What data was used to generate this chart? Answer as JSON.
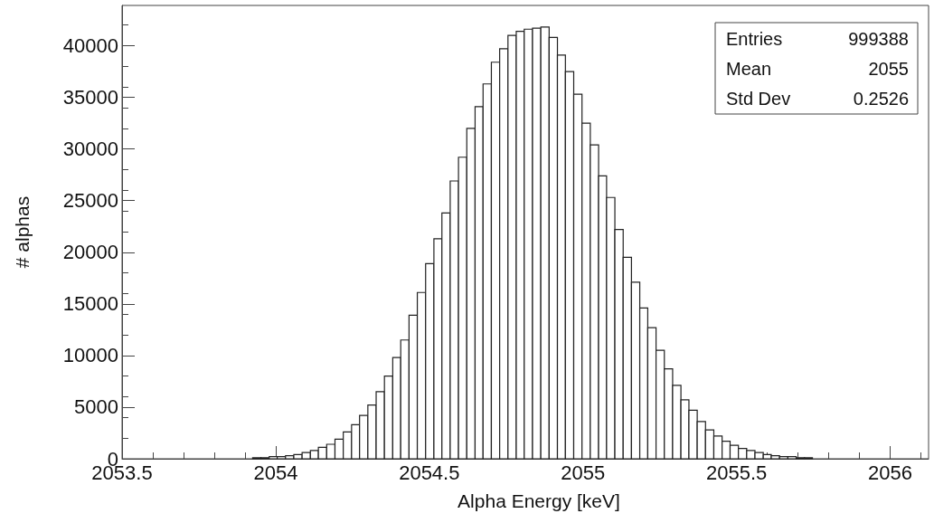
{
  "chart_data": {
    "type": "histogram",
    "xlabel": "Alpha Energy [keV]",
    "ylabel": "# alphas",
    "color": "#222222",
    "bins": [
      2053.925,
      2053.952,
      2053.979,
      2054.005,
      2054.032,
      2054.059,
      2054.086,
      2054.113,
      2054.139,
      2054.166,
      2054.193,
      2054.22,
      2054.247,
      2054.273,
      2054.3,
      2054.327,
      2054.354,
      2054.381,
      2054.407,
      2054.434,
      2054.461,
      2054.488,
      2054.515,
      2054.541,
      2054.568,
      2054.595,
      2054.622,
      2054.649,
      2054.675,
      2054.702,
      2054.729,
      2054.756,
      2054.783,
      2054.809,
      2054.836,
      2054.863,
      2054.89,
      2054.917,
      2054.943,
      2054.97,
      2054.997,
      2055.024,
      2055.051,
      2055.077,
      2055.104,
      2055.131,
      2055.158,
      2055.185,
      2055.211,
      2055.238,
      2055.265,
      2055.292,
      2055.319,
      2055.345,
      2055.372,
      2055.399,
      2055.426,
      2055.453,
      2055.479,
      2055.506,
      2055.533,
      2055.56,
      2055.587,
      2055.613,
      2055.64,
      2055.667,
      2055.694,
      2055.721,
      2055.747
    ],
    "values": [
      100,
      100,
      200,
      200,
      300,
      400,
      600,
      800,
      1100,
      1400,
      1900,
      2600,
      3300,
      4200,
      5200,
      6500,
      8000,
      9800,
      11500,
      13900,
      16100,
      18900,
      21300,
      23800,
      26900,
      29200,
      32000,
      34100,
      36300,
      38400,
      39700,
      41000,
      41400,
      41600,
      41700,
      41800,
      40800,
      39100,
      37500,
      35300,
      32500,
      30400,
      27400,
      25300,
      22200,
      19500,
      17100,
      14600,
      12700,
      10500,
      8700,
      7100,
      5700,
      4700,
      3600,
      2800,
      2200,
      1700,
      1300,
      1000,
      800,
      600,
      400,
      300,
      200,
      200,
      100,
      100
    ],
    "xlim": [
      2053.5,
      2056.125
    ],
    "xticks": [
      2053.5,
      2054,
      2054.5,
      2055,
      2055.5,
      2056
    ],
    "ylim": [
      0,
      43900
    ],
    "yticks": [
      0,
      5000,
      10000,
      15000,
      20000,
      25000,
      30000,
      35000,
      40000
    ],
    "annotations": [
      "Entries",
      "999388",
      "Mean",
      "2055",
      "Std Dev",
      "0.2526"
    ]
  }
}
